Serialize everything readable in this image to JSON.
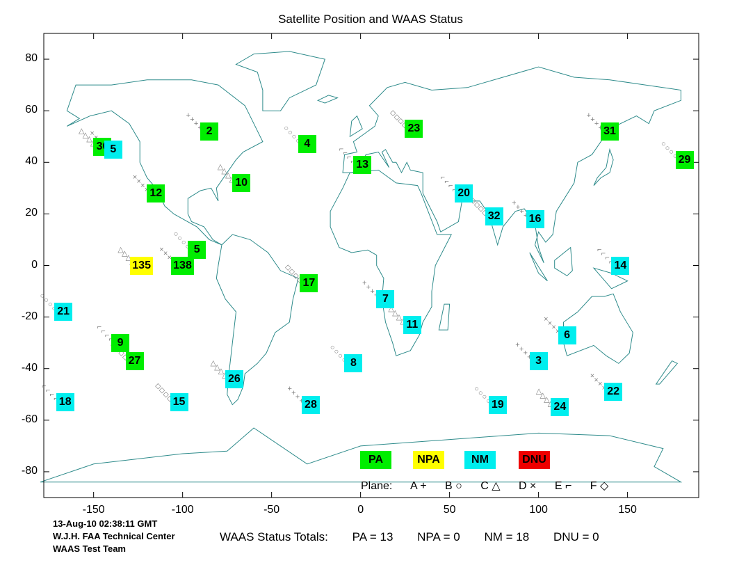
{
  "title": "Satellite Position and WAAS Status",
  "axes": {
    "xlim": [
      -178,
      190
    ],
    "ylim": [
      -90,
      90
    ],
    "x_ticks": [
      "-150",
      "-100",
      "-50",
      "0",
      "50",
      "100",
      "150"
    ],
    "y_ticks": [
      "80",
      "60",
      "40",
      "20",
      "0",
      "-20",
      "-40",
      "-60",
      "-80"
    ]
  },
  "colors": {
    "PA": "#00ee00",
    "NPA": "#ffff00",
    "NM": "#00eeee",
    "DNU": "#ee0000",
    "coast": "#2e8b8b",
    "track": "#808080"
  },
  "satellites": [
    {
      "id": "2",
      "lon": -85,
      "lat": 52,
      "status": "PA"
    },
    {
      "id": "4",
      "lon": -30,
      "lat": 47,
      "status": "PA"
    },
    {
      "id": "30",
      "lon": -145,
      "lat": 46,
      "status": "PA"
    },
    {
      "id": "5",
      "lon": -139,
      "lat": 45,
      "status": "NM"
    },
    {
      "id": "13",
      "lon": 1,
      "lat": 39,
      "status": "PA"
    },
    {
      "id": "23",
      "lon": 30,
      "lat": 53,
      "status": "PA"
    },
    {
      "id": "31",
      "lon": 140,
      "lat": 52,
      "status": "PA"
    },
    {
      "id": "29",
      "lon": 182,
      "lat": 41,
      "status": "PA"
    },
    {
      "id": "10",
      "lon": -67,
      "lat": 32,
      "status": "PA"
    },
    {
      "id": "12",
      "lon": -115,
      "lat": 28,
      "status": "PA"
    },
    {
      "id": "20",
      "lon": 58,
      "lat": 28,
      "status": "NM"
    },
    {
      "id": "32",
      "lon": 75,
      "lat": 19,
      "status": "NM"
    },
    {
      "id": "16",
      "lon": 98,
      "lat": 18,
      "status": "NM"
    },
    {
      "id": "5",
      "lon": -92,
      "lat": 6,
      "status": "PA"
    },
    {
      "id": "135",
      "lon": -123,
      "lat": 0,
      "status": "NPA"
    },
    {
      "id": "138",
      "lon": -100,
      "lat": 0,
      "status": "PA"
    },
    {
      "id": "14",
      "lon": 146,
      "lat": 0,
      "status": "NM"
    },
    {
      "id": "17",
      "lon": -29,
      "lat": -7,
      "status": "PA"
    },
    {
      "id": "7",
      "lon": 14,
      "lat": -13,
      "status": "NM"
    },
    {
      "id": "21",
      "lon": -167,
      "lat": -18,
      "status": "NM"
    },
    {
      "id": "11",
      "lon": 29,
      "lat": -23,
      "status": "NM"
    },
    {
      "id": "6",
      "lon": 116,
      "lat": -27,
      "status": "NM"
    },
    {
      "id": "9",
      "lon": -135,
      "lat": -30,
      "status": "PA"
    },
    {
      "id": "27",
      "lon": -127,
      "lat": -37,
      "status": "PA"
    },
    {
      "id": "3",
      "lon": 100,
      "lat": -37,
      "status": "NM"
    },
    {
      "id": "8",
      "lon": -4,
      "lat": -38,
      "status": "NM"
    },
    {
      "id": "26",
      "lon": -71,
      "lat": -44,
      "status": "NM"
    },
    {
      "id": "22",
      "lon": 142,
      "lat": -49,
      "status": "NM"
    },
    {
      "id": "18",
      "lon": -166,
      "lat": -53,
      "status": "NM"
    },
    {
      "id": "15",
      "lon": -102,
      "lat": -53,
      "status": "NM"
    },
    {
      "id": "28",
      "lon": -28,
      "lat": -54,
      "status": "NM"
    },
    {
      "id": "19",
      "lon": 77,
      "lat": -54,
      "status": "NM"
    },
    {
      "id": "24",
      "lon": 112,
      "lat": -55,
      "status": "NM"
    }
  ],
  "legend_status": [
    {
      "label": "PA",
      "status": "PA"
    },
    {
      "label": "NPA",
      "status": "NPA"
    },
    {
      "label": "NM",
      "status": "NM"
    },
    {
      "label": "DNU",
      "status": "DNU"
    }
  ],
  "plane_legend": {
    "prefix": "Plane:",
    "items": [
      {
        "label": "A",
        "symbol": "+"
      },
      {
        "label": "B",
        "symbol": "○"
      },
      {
        "label": "C",
        "symbol": "△"
      },
      {
        "label": "D",
        "symbol": "×"
      },
      {
        "label": "E",
        "symbol": "⌐"
      },
      {
        "label": "F",
        "symbol": "◇"
      }
    ]
  },
  "credits": {
    "timestamp": "13-Aug-10 02:38:11 GMT",
    "org": "W.J.H. FAA Technical Center",
    "team": "WAAS Test Team"
  },
  "totals": {
    "label": "WAAS Status Totals:",
    "pa": "PA = 13",
    "npa": "NPA = 0",
    "nm": "NM = 18",
    "dnu": "DNU = 0"
  }
}
